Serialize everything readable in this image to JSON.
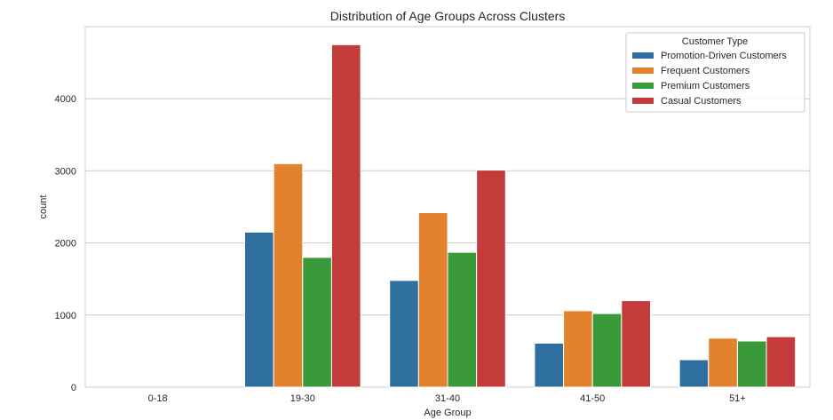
{
  "chart_data": {
    "type": "bar",
    "title": "Distribution of Age Groups Across Clusters",
    "xlabel": "Age Group",
    "ylabel": "count",
    "categories": [
      "0-18",
      "19-30",
      "31-40",
      "41-50",
      "51+"
    ],
    "ylim": [
      0,
      5000
    ],
    "yticks": [
      0,
      1000,
      2000,
      3000,
      4000
    ],
    "grid": true,
    "legend": {
      "title": "Customer Type",
      "placement": "top-right"
    },
    "series": [
      {
        "name": "Promotion-Driven Customers",
        "color": "#2f6f9f",
        "values": [
          0,
          2150,
          1480,
          610,
          380
        ]
      },
      {
        "name": "Frequent Customers",
        "color": "#e3822c",
        "values": [
          0,
          3100,
          2420,
          1060,
          680
        ]
      },
      {
        "name": "Premium Customers",
        "color": "#3a9a3a",
        "values": [
          0,
          1800,
          1870,
          1020,
          640
        ]
      },
      {
        "name": "Casual Customers",
        "color": "#c43b3b",
        "values": [
          0,
          4750,
          3010,
          1200,
          700
        ]
      }
    ]
  }
}
